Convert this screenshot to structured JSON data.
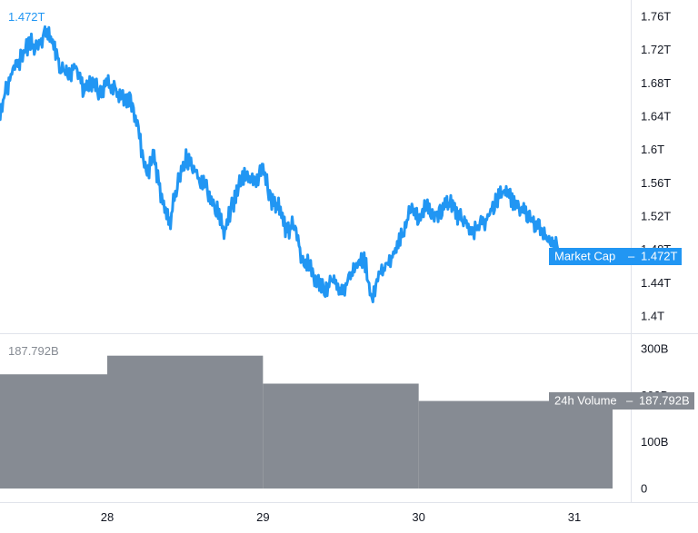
{
  "chart_data": [
    {
      "type": "line",
      "name": "Market Cap",
      "legend_value": "1.472T",
      "tag_label": "Market Cap",
      "tag_value": "1.472T",
      "x_ticks": [
        "28",
        "29",
        "30",
        "31"
      ],
      "y_ticks": [
        "1.76T",
        "1.72T",
        "1.68T",
        "1.64T",
        "1.6T",
        "1.56T",
        "1.52T",
        "1.48T",
        "1.44T",
        "1.4T"
      ],
      "y_tick_values": [
        1.76,
        1.72,
        1.68,
        1.64,
        1.6,
        1.56,
        1.52,
        1.48,
        1.44,
        1.4
      ],
      "ylim": [
        1.39,
        1.77
      ],
      "xlim": [
        27.3,
        31.3
      ],
      "grid": false,
      "x": [
        27.3,
        27.35,
        27.4,
        27.45,
        27.5,
        27.55,
        27.6,
        27.65,
        27.7,
        27.75,
        27.8,
        27.85,
        27.9,
        27.95,
        28.0,
        28.05,
        28.1,
        28.15,
        28.2,
        28.25,
        28.3,
        28.35,
        28.4,
        28.45,
        28.5,
        28.55,
        28.6,
        28.65,
        28.7,
        28.75,
        28.8,
        28.85,
        28.9,
        28.95,
        29.0,
        29.05,
        29.1,
        29.15,
        29.2,
        29.25,
        29.3,
        29.35,
        29.4,
        29.45,
        29.5,
        29.55,
        29.6,
        29.65,
        29.7,
        29.75,
        29.8,
        29.85,
        29.9,
        29.95,
        30.0,
        30.05,
        30.1,
        30.15,
        30.2,
        30.25,
        30.3,
        30.35,
        30.4,
        30.45,
        30.5,
        30.55,
        30.6,
        30.65,
        30.7,
        30.75,
        30.8,
        30.85,
        30.9,
        30.95,
        31.0,
        31.05,
        31.1,
        31.15
      ],
      "values": [
        1.64,
        1.67,
        1.7,
        1.71,
        1.73,
        1.72,
        1.74,
        1.73,
        1.7,
        1.69,
        1.7,
        1.67,
        1.68,
        1.67,
        1.68,
        1.67,
        1.66,
        1.66,
        1.62,
        1.57,
        1.59,
        1.54,
        1.51,
        1.56,
        1.59,
        1.58,
        1.56,
        1.55,
        1.53,
        1.5,
        1.53,
        1.56,
        1.57,
        1.56,
        1.58,
        1.54,
        1.53,
        1.5,
        1.51,
        1.47,
        1.46,
        1.44,
        1.43,
        1.45,
        1.43,
        1.44,
        1.46,
        1.47,
        1.42,
        1.45,
        1.46,
        1.48,
        1.5,
        1.53,
        1.52,
        1.53,
        1.52,
        1.53,
        1.54,
        1.52,
        1.51,
        1.5,
        1.51,
        1.52,
        1.54,
        1.55,
        1.54,
        1.53,
        1.52,
        1.51,
        1.5,
        1.49,
        1.48,
        1.472,
        1.472,
        1.472,
        1.472,
        1.472
      ],
      "color": "#2196f3"
    },
    {
      "type": "bar",
      "name": "24h Volume",
      "legend_value": "187.792B",
      "tag_label": "24h Volume",
      "tag_value": "187.792B",
      "x_ticks": [
        "28",
        "29",
        "30",
        "31"
      ],
      "y_ticks": [
        "300B",
        "200B",
        "100B",
        "0"
      ],
      "y_tick_values": [
        300,
        200,
        100,
        0
      ],
      "ylim": [
        0,
        312
      ],
      "bars": [
        {
          "start": 27.3,
          "end": 28.0,
          "value": 245
        },
        {
          "start": 28.0,
          "end": 29.0,
          "value": 285
        },
        {
          "start": 29.0,
          "end": 30.0,
          "value": 225
        },
        {
          "start": 30.0,
          "end": 31.25,
          "value": 187.792
        }
      ],
      "color": "#868b93"
    }
  ],
  "colors": {
    "line": "#2196f3",
    "volume": "#868b93",
    "legend_volume_text": "#868b93",
    "axis_text": "#131722",
    "divider": "#e0e3eb"
  }
}
